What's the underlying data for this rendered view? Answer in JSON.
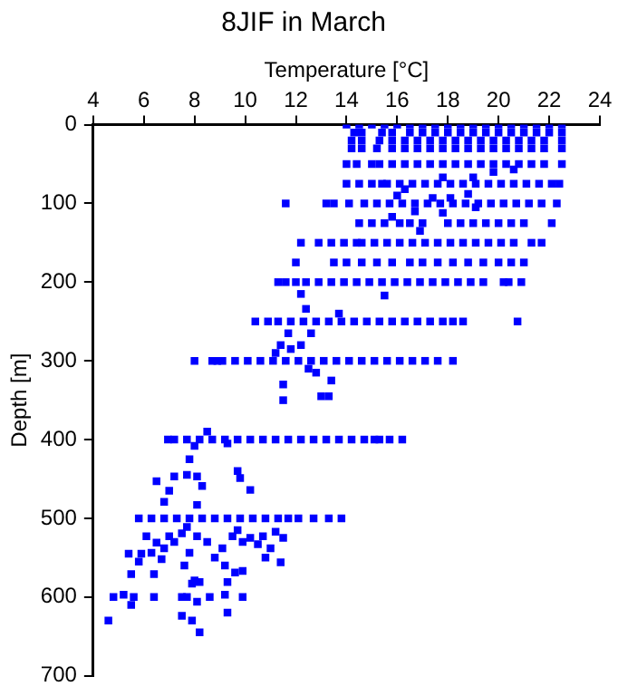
{
  "chart_data": {
    "type": "scatter",
    "title": "8JIF in March",
    "xlabel": "Temperature [°C]",
    "ylabel": "Depth [m]",
    "xlim": [
      4,
      24
    ],
    "xticks": [
      4,
      6,
      8,
      10,
      12,
      14,
      16,
      18,
      20,
      22,
      24
    ],
    "ylim": [
      700,
      0
    ],
    "yticks": [
      0,
      100,
      200,
      300,
      400,
      500,
      600,
      700
    ],
    "marker": "square",
    "grid": false,
    "series": [
      {
        "color": "#0000ff",
        "x": [
          14,
          14.5,
          15,
          15.5,
          16,
          16.5,
          17,
          17.5,
          18,
          18.5,
          19,
          19.5,
          20,
          20.5,
          21,
          21.5,
          22,
          22.5
        ],
        "values": [
          0,
          0,
          0,
          0,
          0,
          0,
          0,
          0,
          0,
          0,
          0,
          0,
          0,
          0,
          0,
          0,
          0,
          0
        ]
      },
      {
        "color": "#0000ff",
        "x": [
          14.3,
          14.6,
          15.4,
          15.8,
          16.5,
          17,
          17.5,
          18,
          18.5,
          19,
          19.5,
          20,
          20.5,
          21,
          21.5,
          22,
          22.5
        ],
        "values": [
          10,
          10,
          10,
          10,
          10,
          10,
          10,
          10,
          10,
          10,
          10,
          10,
          10,
          10,
          10,
          10,
          10
        ]
      },
      {
        "color": "#0000ff",
        "x": [
          14.2,
          14.6,
          15.3,
          15.8,
          16.3,
          16.8,
          17.3,
          17.8,
          18.3,
          18.8,
          19.3,
          19.8,
          20.3,
          20.8,
          21.3,
          21.8,
          22.5
        ],
        "values": [
          20,
          20,
          20,
          20,
          20,
          20,
          20,
          20,
          20,
          20,
          20,
          20,
          20,
          20,
          20,
          20,
          20
        ]
      },
      {
        "color": "#0000ff",
        "x": [
          14.2,
          14.6,
          15.2,
          15.8,
          16.3,
          16.8,
          17.3,
          17.8,
          18.3,
          18.8,
          19.3,
          19.8,
          20.3,
          20.8,
          21.3,
          21.8,
          22.5
        ],
        "values": [
          30,
          30,
          30,
          30,
          30,
          30,
          30,
          30,
          30,
          30,
          30,
          30,
          30,
          30,
          30,
          30,
          30
        ]
      },
      {
        "color": "#0000ff",
        "x": [
          14,
          14.4,
          15,
          15.3,
          15.8,
          16.3,
          16.8,
          17.3,
          17.8,
          18.3,
          18.8,
          19.3,
          19.8,
          20.3,
          20.8,
          21.3,
          21.8,
          22.5,
          20.6
        ],
        "values": [
          50,
          50,
          50,
          50,
          50,
          50,
          50,
          50,
          50,
          50,
          50,
          50,
          50,
          50,
          50,
          50,
          50,
          50,
          57
        ]
      },
      {
        "color": "#0000ff",
        "x": [
          14,
          14.5,
          15,
          15.4,
          15.6,
          16.1,
          16.6,
          17.1,
          17.6,
          18.1,
          18.6,
          19.1,
          19.6,
          20.1,
          20.6,
          21.1,
          21.6,
          22.1,
          22.4,
          17.8,
          19,
          19.8,
          16.3
        ],
        "values": [
          75,
          75,
          75,
          75,
          75,
          75,
          75,
          75,
          75,
          75,
          75,
          75,
          75,
          75,
          75,
          75,
          75,
          75,
          75,
          67,
          67,
          60,
          82
        ]
      },
      {
        "color": "#0000ff",
        "x": [
          11.6,
          13.2,
          13.5,
          14.1,
          14.7,
          15.2,
          15.7,
          16.2,
          16.7,
          17.2,
          17.7,
          18.2,
          18.7,
          19.2,
          19.7,
          20.2,
          20.7,
          21.2,
          21.7,
          22.3,
          16,
          17.4,
          18.1,
          18.8,
          19.1,
          16.7,
          15.8,
          17.8,
          16.9
        ],
        "values": [
          100,
          100,
          100,
          100,
          100,
          100,
          100,
          100,
          100,
          100,
          100,
          100,
          100,
          100,
          100,
          100,
          100,
          100,
          100,
          100,
          90,
          93,
          93,
          88,
          105,
          110,
          117,
          112,
          135
        ]
      },
      {
        "color": "#0000ff",
        "x": [
          14.5,
          15,
          15.5,
          16.1,
          16.5,
          17,
          18,
          18.5,
          19,
          19.5,
          20,
          20.5,
          21,
          22.1
        ],
        "values": [
          125,
          125,
          125,
          125,
          125,
          125,
          125,
          125,
          125,
          125,
          125,
          125,
          125,
          125
        ]
      },
      {
        "color": "#0000ff",
        "x": [
          12.2,
          12.9,
          13.4,
          13.9,
          14.4,
          14.6,
          15.1,
          15.6,
          16.1,
          16.6,
          17.1,
          17.6,
          18.1,
          18.6,
          19.1,
          19.6,
          20.1,
          20.6,
          21.3,
          21.7
        ],
        "values": [
          150,
          150,
          150,
          150,
          150,
          150,
          150,
          150,
          150,
          150,
          150,
          150,
          150,
          150,
          150,
          150,
          150,
          150,
          150,
          150
        ]
      },
      {
        "color": "#0000ff",
        "x": [
          12,
          13.5,
          14,
          14.6,
          15.2,
          15.8,
          16.5,
          17,
          17.6,
          18.2,
          18.8,
          19.4,
          20,
          20.5,
          21
        ],
        "values": [
          175,
          175,
          175,
          175,
          175,
          175,
          175,
          175,
          175,
          175,
          175,
          175,
          175,
          175,
          175
        ]
      },
      {
        "color": "#0000ff",
        "x": [
          11.3,
          11.6,
          12,
          12.4,
          12.9,
          13.4,
          13.9,
          14.4,
          14.9,
          15.4,
          15.9,
          16.4,
          16.9,
          17.4,
          17.9,
          18.4,
          18.9,
          19.4,
          20.2,
          20.4,
          20.9,
          12.2,
          15.5,
          12.4,
          13.7
        ],
        "values": [
          200,
          200,
          200,
          200,
          200,
          200,
          200,
          200,
          200,
          200,
          200,
          200,
          200,
          200,
          200,
          200,
          200,
          200,
          200,
          200,
          200,
          215,
          217,
          234,
          240
        ]
      },
      {
        "color": "#0000ff",
        "x": [
          10.4,
          10.9,
          11.3,
          11.8,
          12.3,
          12.8,
          13.3,
          13.8,
          14.3,
          14.8,
          15.3,
          15.8,
          16.3,
          16.8,
          17.3,
          17.8,
          18.2,
          18.6,
          20.75,
          11.7,
          11.2,
          11.4,
          11.8,
          12.2,
          12.6,
          12.5,
          12.8,
          13,
          13.3,
          13.4,
          11.5,
          11.5
        ],
        "values": [
          250,
          250,
          250,
          250,
          250,
          250,
          250,
          250,
          250,
          250,
          250,
          250,
          250,
          250,
          250,
          250,
          250,
          250,
          250,
          265,
          290,
          280,
          285,
          280,
          265,
          310,
          315,
          345,
          345,
          325,
          330,
          350
        ]
      },
      {
        "color": "#0000ff",
        "x": [
          8,
          8.7,
          8.9,
          9.1,
          9.6,
          10.1,
          10.6,
          11.1,
          11.6,
          12.1,
          12.6,
          13.1,
          13.6,
          14.1,
          14.6,
          15.1,
          15.6,
          16.1,
          16.6,
          17.1,
          17.6,
          18.2
        ],
        "values": [
          300,
          300,
          300,
          300,
          300,
          300,
          300,
          300,
          300,
          300,
          300,
          300,
          300,
          300,
          300,
          300,
          300,
          300,
          300,
          300,
          300,
          300
        ]
      },
      {
        "color": "#0000ff",
        "x": [
          6.95,
          7.2,
          7.7,
          8.2,
          8.7,
          9.2,
          9.7,
          10.2,
          10.7,
          11.2,
          11.7,
          12.2,
          12.7,
          13.2,
          13.7,
          14.2,
          14.7,
          15.1,
          15.3,
          15.7,
          16.2,
          8.5,
          8,
          9.3,
          7.8
        ],
        "values": [
          400,
          400,
          400,
          400,
          400,
          400,
          400,
          400,
          400,
          400,
          400,
          400,
          400,
          400,
          400,
          400,
          400,
          400,
          400,
          400,
          400,
          390,
          408,
          405,
          425
        ]
      },
      {
        "color": "#0000ff",
        "x": [
          5.8,
          6.3,
          6.8,
          7.3,
          7.8,
          8.3,
          8.8,
          9.3,
          9.8,
          10.3,
          10.8,
          11.3,
          11.7,
          12.1,
          12.7,
          13.3,
          13.8
        ],
        "values": [
          500,
          500,
          500,
          500,
          500,
          500,
          500,
          500,
          500,
          500,
          500,
          500,
          500,
          500,
          500,
          500,
          500
        ]
      },
      {
        "color": "#0000ff",
        "x": [
          6.5,
          7.2,
          7.7,
          8.1,
          8.3,
          9.8,
          10.2,
          6.8,
          7,
          8.1,
          9.7,
          5.4,
          5.5,
          5.8,
          5.9,
          6.1,
          6.3,
          6.4,
          6.5,
          6.7,
          6.8,
          7,
          7.2,
          7.5,
          7.7,
          7.6,
          7.9,
          7.8,
          8.1,
          8.5,
          8.8,
          9.1,
          9.5,
          9.7,
          9.9,
          10.2,
          10.5,
          10.7,
          11,
          11.2,
          11.5,
          10.8,
          11.4,
          9.2,
          9.3,
          9.6,
          9.9,
          9.2,
          9.9,
          8.6,
          8.1,
          7.7,
          7.5,
          6.4,
          5.6,
          4.8,
          5.2,
          5.5,
          4.6,
          7.5,
          7.9,
          8.2,
          9.3,
          8,
          8.2
        ],
        "values": [
          453,
          447,
          445,
          447,
          459,
          449,
          464,
          479,
          465,
          483,
          440,
          545,
          571,
          555,
          545,
          523,
          544,
          571,
          531,
          552,
          538,
          523,
          530,
          519,
          511,
          560,
          583,
          544,
          523,
          530,
          550,
          538,
          523,
          515,
          530,
          525,
          533,
          523,
          538,
          517,
          525,
          550,
          556,
          560,
          581,
          569,
          567,
          597,
          600,
          600,
          606,
          600,
          600,
          600,
          600,
          600,
          597,
          610,
          630,
          624,
          630,
          645,
          620,
          579,
          581
        ]
      }
    ]
  }
}
